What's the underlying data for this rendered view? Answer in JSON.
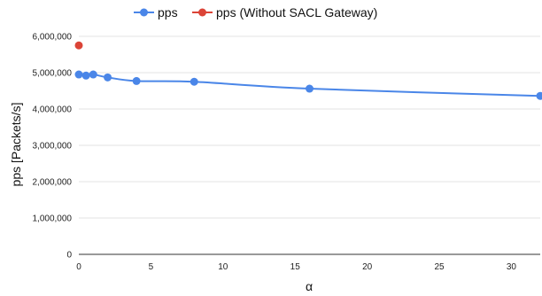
{
  "chart_data": {
    "type": "line",
    "xlabel": "α",
    "ylabel": "pps [Packets/s]",
    "xlim": [
      0,
      32
    ],
    "ylim": [
      0,
      6000000
    ],
    "x_ticks": [
      0,
      5,
      10,
      15,
      20,
      25,
      30
    ],
    "y_ticks": [
      0,
      1000000,
      2000000,
      3000000,
      4000000,
      5000000,
      6000000
    ],
    "x_tick_labels": [
      "0",
      "5",
      "10",
      "15",
      "20",
      "25",
      "30"
    ],
    "y_tick_labels": [
      "0",
      "1,000,000",
      "2,000,000",
      "3,000,000",
      "4,000,000",
      "5,000,000",
      "6,000,000"
    ],
    "grid": true,
    "legend_position": "top-center",
    "series": [
      {
        "name": "pps",
        "color": "#4a86e8",
        "x": [
          0,
          0.5,
          1,
          2,
          4,
          8,
          16,
          32
        ],
        "values": [
          4950000,
          4920000,
          4950000,
          4870000,
          4770000,
          4750000,
          4560000,
          4360000
        ]
      },
      {
        "name": "pps (Without SACL Gateway)",
        "color": "#db4437",
        "x": [
          0
        ],
        "values": [
          5750000
        ]
      }
    ]
  }
}
